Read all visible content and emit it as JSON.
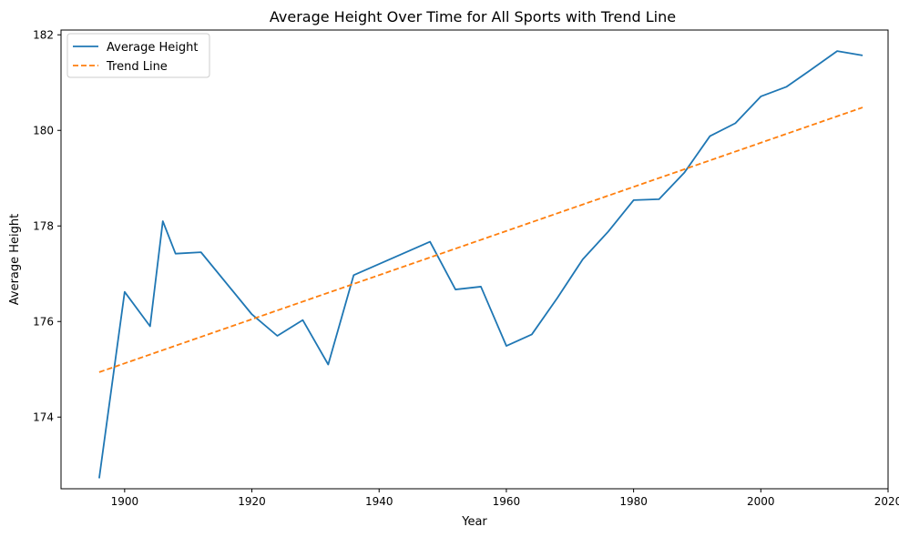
{
  "chart_data": {
    "type": "line",
    "title": "Average Height Over Time for All Sports with Trend Line",
    "xlabel": "Year",
    "ylabel": "Average Height",
    "xlim": [
      1890,
      2020
    ],
    "ylim": [
      172.5,
      182.1
    ],
    "xticks": [
      1900,
      1920,
      1940,
      1960,
      1980,
      2000,
      2020
    ],
    "yticks": [
      174,
      176,
      178,
      180,
      182
    ],
    "grid": false,
    "legend_position": "top-left",
    "series": [
      {
        "name": "Average Height",
        "color": "#1f77b4",
        "style": "solid",
        "x": [
          1896,
          1900,
          1904,
          1906,
          1908,
          1912,
          1920,
          1924,
          1928,
          1932,
          1936,
          1948,
          1952,
          1956,
          1960,
          1964,
          1968,
          1972,
          1976,
          1980,
          1984,
          1988,
          1992,
          1996,
          2000,
          2004,
          2008,
          2012,
          2016
        ],
        "y": [
          172.72,
          176.62,
          175.9,
          178.1,
          177.42,
          177.45,
          176.15,
          175.7,
          176.03,
          175.1,
          176.97,
          177.67,
          176.67,
          176.73,
          175.49,
          175.73,
          176.49,
          177.3,
          177.88,
          178.54,
          178.56,
          179.12,
          179.88,
          180.15,
          180.71,
          180.91,
          181.28,
          181.66,
          181.57
        ]
      },
      {
        "name": "Trend Line",
        "color": "#ff7f0e",
        "style": "dashed",
        "x": [
          1896,
          2016
        ],
        "y": [
          174.94,
          180.48
        ]
      }
    ]
  }
}
